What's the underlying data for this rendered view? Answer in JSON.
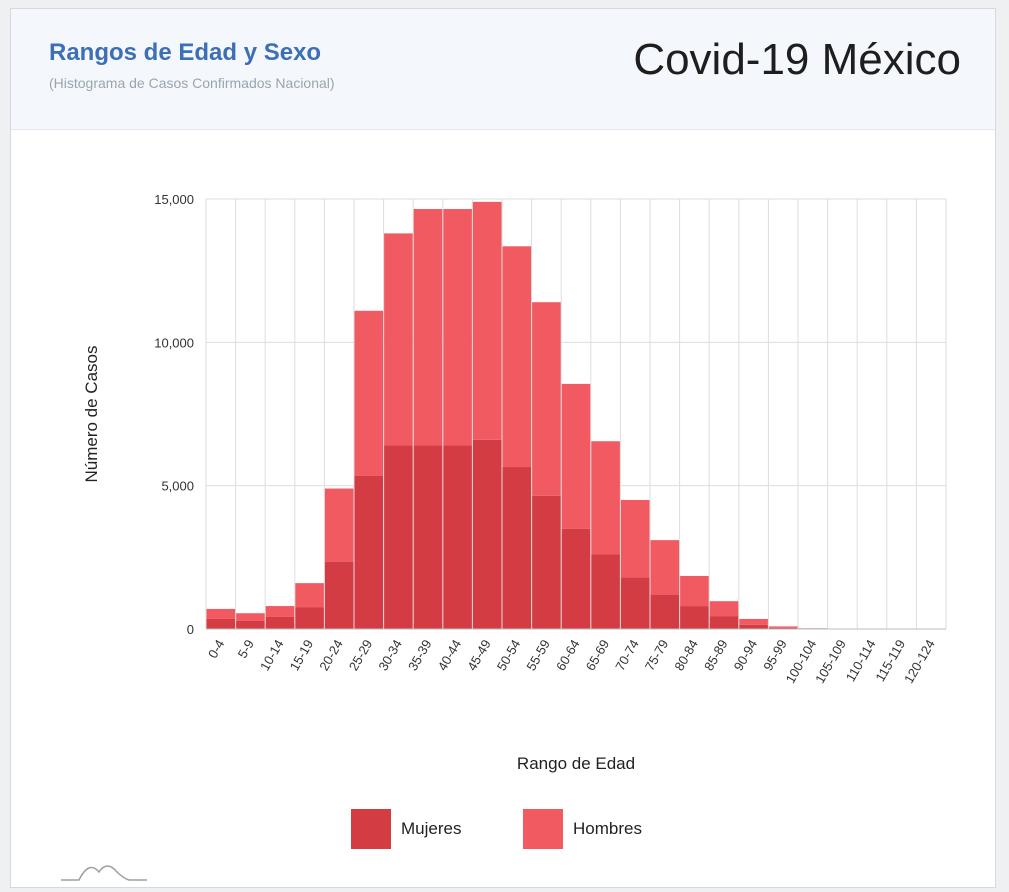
{
  "header": {
    "title": "Rangos de Edad y Sexo",
    "subtitle": "(Histograma de Casos Confirmados Nacional)",
    "brand": "Covid-19 México"
  },
  "colors": {
    "mujeres": "#d33c43",
    "hombres": "#f15a61",
    "grid": "#dddddd",
    "title": "#3d6fb6"
  },
  "chart_data": {
    "type": "bar",
    "stacked": true,
    "title": "Rangos de Edad y Sexo",
    "subtitle": "(Histograma de Casos Confirmados Nacional)",
    "xlabel": "Rango de Edad",
    "ylabel": "Número de Casos",
    "ylim": [
      0,
      15000
    ],
    "yticks": [
      0,
      5000,
      10000,
      15000
    ],
    "ytick_labels": [
      "0",
      "5,000",
      "10,000",
      "15,000"
    ],
    "grid": true,
    "legend_position": "bottom",
    "categories": [
      "0-4",
      "5-9",
      "10-14",
      "15-19",
      "20-24",
      "25-29",
      "30-34",
      "35-39",
      "40-44",
      "45-49",
      "50-54",
      "55-59",
      "60-64",
      "65-69",
      "70-74",
      "75-79",
      "80-84",
      "85-89",
      "90-94",
      "95-99",
      "100-104",
      "105-109",
      "110-114",
      "115-119",
      "120-124"
    ],
    "series": [
      {
        "name": "Mujeres",
        "values": [
          350,
          280,
          420,
          750,
          2350,
          5350,
          6400,
          6400,
          6400,
          6600,
          5650,
          4650,
          3500,
          2600,
          1800,
          1200,
          800,
          450,
          150,
          40,
          10,
          5,
          0,
          0,
          0
        ]
      },
      {
        "name": "Hombres",
        "values": [
          350,
          270,
          380,
          850,
          2550,
          5750,
          7400,
          8250,
          8250,
          8300,
          7700,
          6750,
          5050,
          3950,
          2700,
          1900,
          1050,
          520,
          200,
          50,
          15,
          5,
          0,
          0,
          0
        ]
      }
    ]
  }
}
